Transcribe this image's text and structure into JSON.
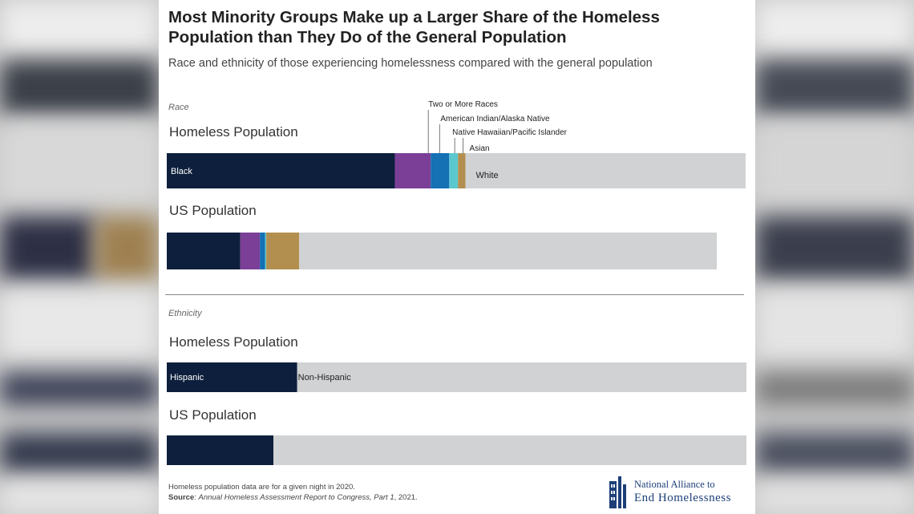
{
  "title": "Most Minority Groups Make up a Larger Share of the Homeless Population than They Do of the General Population",
  "subtitle": "Race and ethnicity of those experiencing homelessness compared with the general population",
  "colors": {
    "black": "#0d1f3c",
    "two_or_more": "#7b3f98",
    "american_indian": "#1570b4",
    "native_hawaiian": "#5bc8cf",
    "asian": "#b38f4f",
    "white": "#d0d2d3",
    "hispanic": "#0d1f3c",
    "non_hispanic": "#d0d2d3",
    "divider": "#8a8a8a"
  },
  "chart_data": [
    {
      "type": "bar",
      "orientation": "horizontal-stacked",
      "section_label": "Race",
      "unit": "percent",
      "segments": [
        "Black",
        "Two or More Races",
        "American Indian/Alaska Native",
        "Native Hawaiian/Pacific Islander",
        "Asian",
        "White"
      ],
      "segment_labels": {
        "Black": "Black",
        "Two or More Races": "Two or More Races",
        "American Indian/Alaska Native": "American Indian/Alaska Native",
        "Native Hawaiian/Pacific Islander": "Native Hawaiian/Pacific Islander",
        "Asian": "Asian",
        "White": "White"
      },
      "rows": [
        {
          "label": "Homeless Population",
          "values": [
            39.4,
            6.2,
            3.2,
            1.5,
            1.3,
            48.4
          ]
        },
        {
          "label": "US Population",
          "values": [
            12.7,
            3.4,
            0.9,
            0.2,
            5.7,
            72.2
          ]
        }
      ],
      "legend": "callout labels above first bar"
    },
    {
      "type": "bar",
      "orientation": "horizontal-stacked",
      "section_label": "Ethnicity",
      "unit": "percent",
      "segments": [
        "Hispanic",
        "Non-Hispanic"
      ],
      "segment_labels": {
        "Hispanic": "Hispanic",
        "Non-Hispanic": "Non-Hispanic"
      },
      "rows": [
        {
          "label": "Homeless Population",
          "values": [
            22.5,
            77.5
          ]
        },
        {
          "label": "US Population",
          "values": [
            18.4,
            81.6
          ]
        }
      ]
    }
  ],
  "footnote": {
    "note": "Homeless population data are for a given night in 2020.",
    "source_label": "Source",
    "source_colon": ": ",
    "source_title": "Annual Homeless Assessment Report to Congress, Part 1",
    "source_year": ", 2021."
  },
  "logo": {
    "line1": "National Alliance to",
    "line2": "End Homelessness"
  }
}
